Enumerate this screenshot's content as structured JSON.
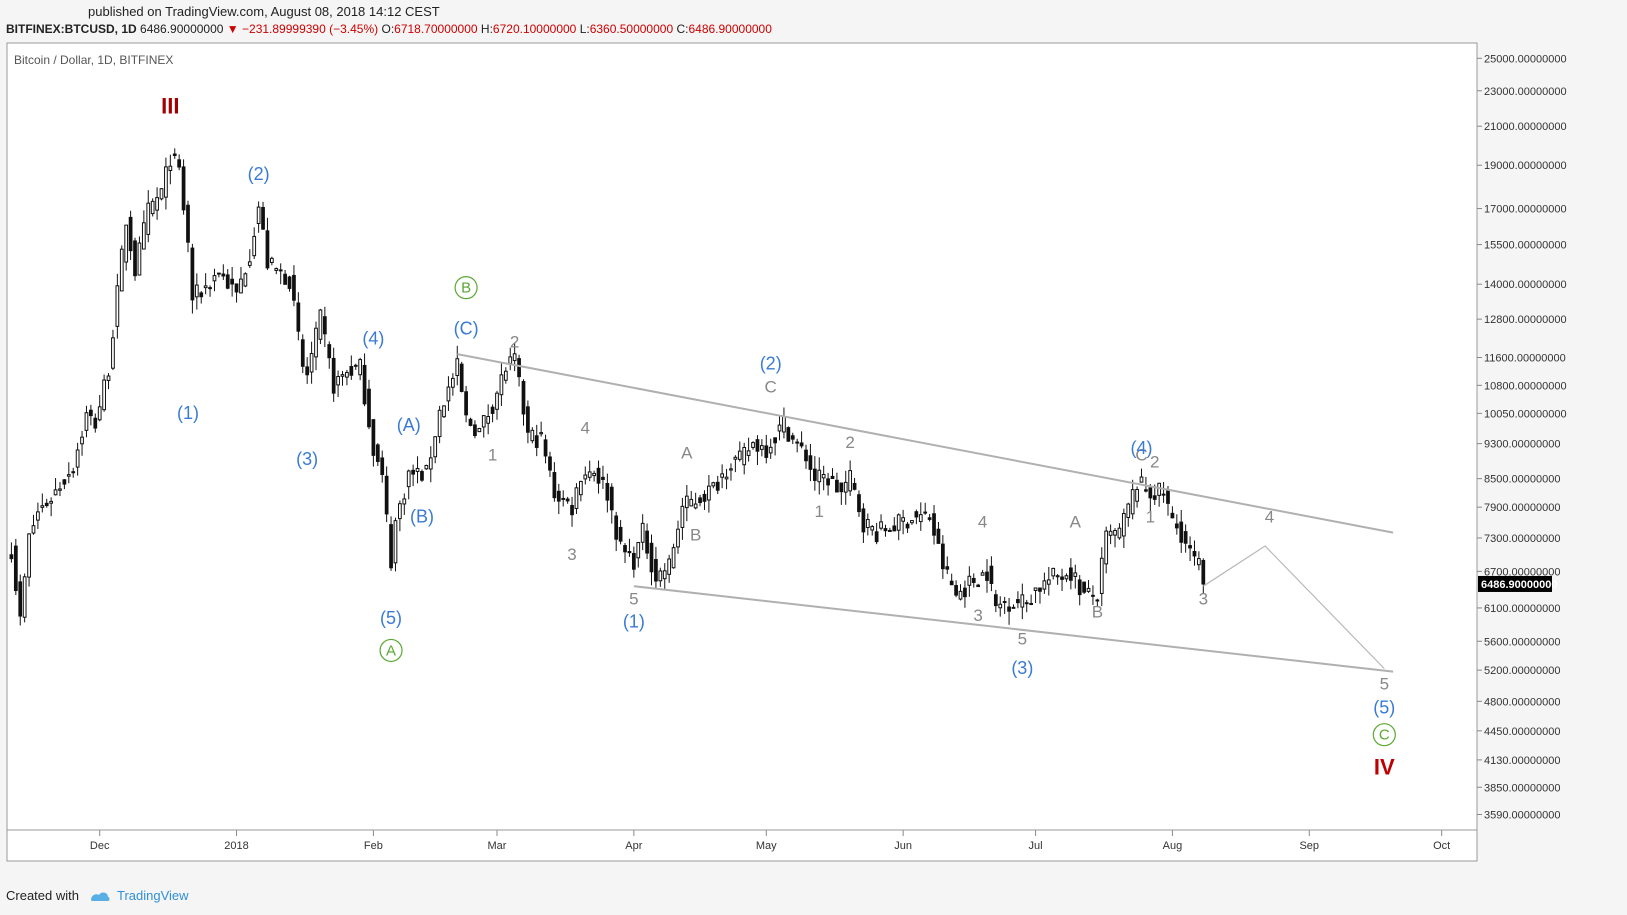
{
  "header": {
    "published": "published on TradingView.com, August 08, 2018 14:12 CEST",
    "symbol": "BITFINEX:BTCUSD, 1D",
    "last": "6486.90000000",
    "change_arrow": "▼",
    "change": "−231.89999390 (−3.45%)",
    "o_label": "O:",
    "o": "6718.70000000",
    "h_label": "H:",
    "h": "6720.10000000",
    "l_label": "L:",
    "l": "6360.50000000",
    "c_label": "C:",
    "c": "6486.90000000"
  },
  "footer": {
    "created_with": "Created with",
    "brand": "TradingView"
  },
  "chart_data": {
    "type": "candlestick",
    "title": "Bitcoin / Dollar, 1D, BITFINEX",
    "y_scale": "log",
    "ylim": [
      3450,
      26000
    ],
    "y_ticks": [
      "25000.00000000",
      "23000.00000000",
      "21000.00000000",
      "19000.00000000",
      "17000.00000000",
      "15500.00000000",
      "14000.00000000",
      "12800.00000000",
      "11600.00000000",
      "10800.00000000",
      "10050.00000000",
      "9300.00000000",
      "8500.00000000",
      "7900.00000000",
      "7300.00000000",
      "6700.00000000",
      "6100.00000000",
      "5600.00000000",
      "5200.00000000",
      "4800.00000000",
      "4450.00000000",
      "4130.00000000",
      "3850.00000000",
      "3590.00000000"
    ],
    "x_ticks": [
      {
        "label": "Dec",
        "date": "2017-12-01"
      },
      {
        "label": "2018",
        "date": "2018-01-01"
      },
      {
        "label": "Feb",
        "date": "2018-02-01"
      },
      {
        "label": "Mar",
        "date": "2018-03-01"
      },
      {
        "label": "Apr",
        "date": "2018-04-01"
      },
      {
        "label": "May",
        "date": "2018-05-01"
      },
      {
        "label": "Jun",
        "date": "2018-06-01"
      },
      {
        "label": "Jul",
        "date": "2018-07-01"
      },
      {
        "label": "Aug",
        "date": "2018-08-01"
      },
      {
        "label": "Sep",
        "date": "2018-09-01"
      },
      {
        "label": "Oct",
        "date": "2018-10-01"
      }
    ],
    "xlim": [
      "2017-11-10",
      "2018-10-09"
    ],
    "last_price_label": "6486.90000000",
    "anchors": [
      [
        "2017-11-11",
        7100
      ],
      [
        "2017-11-13",
        5900
      ],
      [
        "2017-11-15",
        7300
      ],
      [
        "2017-11-17",
        7800
      ],
      [
        "2017-11-20",
        8100
      ],
      [
        "2017-11-25",
        8800
      ],
      [
        "2017-11-28",
        10000
      ],
      [
        "2017-11-30",
        9800
      ],
      [
        "2017-12-03",
        11300
      ],
      [
        "2017-12-07",
        16500
      ],
      [
        "2017-12-09",
        14500
      ],
      [
        "2017-12-12",
        16900
      ],
      [
        "2017-12-15",
        17700
      ],
      [
        "2017-12-17",
        19400
      ],
      [
        "2017-12-19",
        18700
      ],
      [
        "2017-12-21",
        15500
      ],
      [
        "2017-12-22",
        13500
      ],
      [
        "2017-12-25",
        13900
      ],
      [
        "2017-12-28",
        14500
      ],
      [
        "2018-01-01",
        13600
      ],
      [
        "2018-01-04",
        15200
      ],
      [
        "2018-01-06",
        17100
      ],
      [
        "2018-01-08",
        14800
      ],
      [
        "2018-01-10",
        14500
      ],
      [
        "2018-01-13",
        14200
      ],
      [
        "2018-01-16",
        11300
      ],
      [
        "2018-01-17",
        11100
      ],
      [
        "2018-01-20",
        12800
      ],
      [
        "2018-01-23",
        10800
      ],
      [
        "2018-01-26",
        11200
      ],
      [
        "2018-01-29",
        11300
      ],
      [
        "2018-02-01",
        9200
      ],
      [
        "2018-02-03",
        8500
      ],
      [
        "2018-02-05",
        6900
      ],
      [
        "2018-02-06",
        7600
      ],
      [
        "2018-02-09",
        8600
      ],
      [
        "2018-02-13",
        8600
      ],
      [
        "2018-02-16",
        10100
      ],
      [
        "2018-02-20",
        11300
      ],
      [
        "2018-02-22",
        9900
      ],
      [
        "2018-02-25",
        9600
      ],
      [
        "2018-02-28",
        10300
      ],
      [
        "2018-03-03",
        11300
      ],
      [
        "2018-03-05",
        11500
      ],
      [
        "2018-03-08",
        9500
      ],
      [
        "2018-03-11",
        9400
      ],
      [
        "2018-03-14",
        8200
      ],
      [
        "2018-03-18",
        7900
      ],
      [
        "2018-03-20",
        8600
      ],
      [
        "2018-03-23",
        8700
      ],
      [
        "2018-03-26",
        8200
      ],
      [
        "2018-03-29",
        7100
      ],
      [
        "2018-04-01",
        6900
      ],
      [
        "2018-04-03",
        7400
      ],
      [
        "2018-04-06",
        6600
      ],
      [
        "2018-04-09",
        6800
      ],
      [
        "2018-04-12",
        7900
      ],
      [
        "2018-04-16",
        8100
      ],
      [
        "2018-04-19",
        8300
      ],
      [
        "2018-04-23",
        8900
      ],
      [
        "2018-04-25",
        8900
      ],
      [
        "2018-04-28",
        9300
      ],
      [
        "2018-05-01",
        9200
      ],
      [
        "2018-05-05",
        9800
      ],
      [
        "2018-05-07",
        9400
      ],
      [
        "2018-05-10",
        9000
      ],
      [
        "2018-05-12",
        8500
      ],
      [
        "2018-05-15",
        8500
      ],
      [
        "2018-05-18",
        8200
      ],
      [
        "2018-05-20",
        8500
      ],
      [
        "2018-05-23",
        7600
      ],
      [
        "2018-05-26",
        7400
      ],
      [
        "2018-05-29",
        7500
      ],
      [
        "2018-06-03",
        7700
      ],
      [
        "2018-06-07",
        7700
      ],
      [
        "2018-06-10",
        6800
      ],
      [
        "2018-06-13",
        6300
      ],
      [
        "2018-06-16",
        6500
      ],
      [
        "2018-06-20",
        6700
      ],
      [
        "2018-06-22",
        6100
      ],
      [
        "2018-06-24",
        6200
      ],
      [
        "2018-06-29",
        6200
      ],
      [
        "2018-07-01",
        6400
      ],
      [
        "2018-07-05",
        6600
      ],
      [
        "2018-07-09",
        6700
      ],
      [
        "2018-07-12",
        6300
      ],
      [
        "2018-07-15",
        6300
      ],
      [
        "2018-07-17",
        7300
      ],
      [
        "2018-07-20",
        7400
      ],
      [
        "2018-07-24",
        8400
      ],
      [
        "2018-07-27",
        8200
      ],
      [
        "2018-07-30",
        8200
      ],
      [
        "2018-08-01",
        7600
      ],
      [
        "2018-08-03",
        7400
      ],
      [
        "2018-08-05",
        7000
      ],
      [
        "2018-08-07",
        6800
      ],
      [
        "2018-08-08",
        6487
      ]
    ],
    "trendlines": [
      {
        "from": [
          "2018-02-20",
          11700
        ],
        "to": [
          "2018-09-20",
          7400
        ],
        "color": "#b0b0b0"
      },
      {
        "from": [
          "2018-04-01",
          6450
        ],
        "to": [
          "2018-09-20",
          5180
        ],
        "color": "#b0b0b0"
      }
    ],
    "projection": [
      [
        "2018-08-08",
        6450
      ],
      [
        "2018-08-22",
        7150
      ],
      [
        "2018-09-18",
        5220
      ]
    ],
    "wave_labels": [
      {
        "text": "III",
        "date": "2017-12-17",
        "price": 21700,
        "color": "#a00000",
        "size": 22,
        "bold": true
      },
      {
        "text": "(1)",
        "date": "2017-12-21",
        "price": 9900,
        "color": "#3a7bd5",
        "size": 18
      },
      {
        "text": "(2)",
        "date": "2018-01-06",
        "price": 18300,
        "color": "#3a7bd5",
        "size": 18
      },
      {
        "text": "(3)",
        "date": "2018-01-17",
        "price": 8800,
        "color": "#3a7bd5",
        "size": 18
      },
      {
        "text": "(4)",
        "date": "2018-02-01",
        "price": 12000,
        "color": "#3a7bd5",
        "size": 18
      },
      {
        "text": "(A)",
        "date": "2018-02-09",
        "price": 9600,
        "color": "#3a7bd5",
        "size": 18
      },
      {
        "text": "(B)",
        "date": "2018-02-12",
        "price": 7600,
        "color": "#3a7bd5",
        "size": 18
      },
      {
        "text": "(5)",
        "date": "2018-02-05",
        "price": 5850,
        "color": "#3a7bd5",
        "size": 18
      },
      {
        "text": "A",
        "date": "2018-02-05",
        "price": 5400,
        "color": "#5aa832",
        "size": 15,
        "circle": true
      },
      {
        "text": "B",
        "date": "2018-02-22",
        "price": 13700,
        "color": "#5aa832",
        "size": 15,
        "circle": true
      },
      {
        "text": "(C)",
        "date": "2018-02-22",
        "price": 12300,
        "color": "#3a7bd5",
        "size": 18
      },
      {
        "text": "1",
        "date": "2018-02-28",
        "price": 8900,
        "color": "#888888",
        "size": 17
      },
      {
        "text": "2",
        "date": "2018-03-05",
        "price": 11900,
        "color": "#888888",
        "size": 17
      },
      {
        "text": "3",
        "date": "2018-03-18",
        "price": 6900,
        "color": "#888888",
        "size": 17
      },
      {
        "text": "4",
        "date": "2018-03-21",
        "price": 9550,
        "color": "#888888",
        "size": 17
      },
      {
        "text": "5",
        "date": "2018-04-01",
        "price": 6150,
        "color": "#888888",
        "size": 17
      },
      {
        "text": "(1)",
        "date": "2018-04-01",
        "price": 5800,
        "color": "#3a7bd5",
        "size": 18
      },
      {
        "text": "A",
        "date": "2018-04-13",
        "price": 8950,
        "color": "#888888",
        "size": 17
      },
      {
        "text": "B",
        "date": "2018-04-15",
        "price": 7250,
        "color": "#888888",
        "size": 17
      },
      {
        "text": "(2)",
        "date": "2018-05-02",
        "price": 11250,
        "color": "#3a7bd5",
        "size": 18
      },
      {
        "text": "C",
        "date": "2018-05-02",
        "price": 10600,
        "color": "#888888",
        "size": 17
      },
      {
        "text": "1",
        "date": "2018-05-13",
        "price": 7700,
        "color": "#888888",
        "size": 17
      },
      {
        "text": "2",
        "date": "2018-05-20",
        "price": 9200,
        "color": "#888888",
        "size": 17
      },
      {
        "text": "3",
        "date": "2018-06-18",
        "price": 5900,
        "color": "#888888",
        "size": 17
      },
      {
        "text": "4",
        "date": "2018-06-19",
        "price": 7500,
        "color": "#888888",
        "size": 17
      },
      {
        "text": "5",
        "date": "2018-06-28",
        "price": 5550,
        "color": "#888888",
        "size": 17
      },
      {
        "text": "(3)",
        "date": "2018-06-28",
        "price": 5150,
        "color": "#3a7bd5",
        "size": 18
      },
      {
        "text": "A",
        "date": "2018-07-10",
        "price": 7500,
        "color": "#888888",
        "size": 17
      },
      {
        "text": "B",
        "date": "2018-07-15",
        "price": 5950,
        "color": "#888888",
        "size": 17
      },
      {
        "text": "C",
        "date": "2018-07-25",
        "price": 8900,
        "color": "#888888",
        "size": 17
      },
      {
        "text": "(4)",
        "date": "2018-07-25",
        "price": 9050,
        "color": "#3a7bd5",
        "size": 18
      },
      {
        "text": "1",
        "date": "2018-07-27",
        "price": 7600,
        "color": "#888888",
        "size": 17
      },
      {
        "text": "2",
        "date": "2018-07-28",
        "price": 8750,
        "color": "#888888",
        "size": 17
      },
      {
        "text": "3",
        "date": "2018-08-08",
        "price": 6150,
        "color": "#888888",
        "size": 17
      },
      {
        "text": "4",
        "date": "2018-08-23",
        "price": 7600,
        "color": "#888888",
        "size": 17
      },
      {
        "text": "5",
        "date": "2018-09-18",
        "price": 4950,
        "color": "#888888",
        "size": 17
      },
      {
        "text": "(5)",
        "date": "2018-09-18",
        "price": 4650,
        "color": "#3a7bd5",
        "size": 18
      },
      {
        "text": "C",
        "date": "2018-09-18",
        "price": 4350,
        "color": "#5aa832",
        "size": 15,
        "circle": true
      },
      {
        "text": "IV",
        "date": "2018-09-18",
        "price": 3980,
        "color": "#c00000",
        "size": 22,
        "bold": true
      }
    ]
  }
}
